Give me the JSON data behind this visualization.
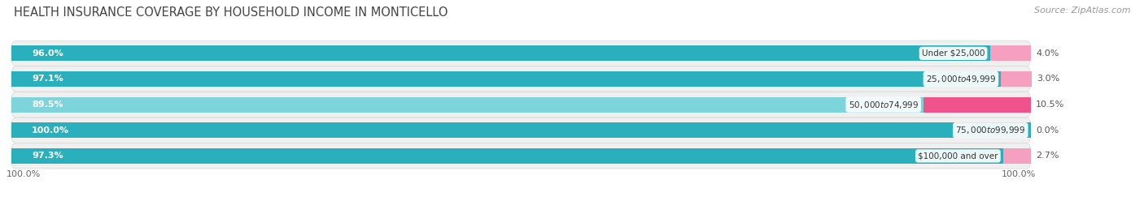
{
  "title": "HEALTH INSURANCE COVERAGE BY HOUSEHOLD INCOME IN MONTICELLO",
  "source": "Source: ZipAtlas.com",
  "categories": [
    "Under $25,000",
    "$25,000 to $49,999",
    "$50,000 to $74,999",
    "$75,000 to $99,999",
    "$100,000 and over"
  ],
  "with_coverage": [
    96.0,
    97.1,
    89.5,
    100.0,
    97.3
  ],
  "without_coverage": [
    4.0,
    3.0,
    10.5,
    0.0,
    2.7
  ],
  "color_coverage_dark": "#2ab0bc",
  "color_coverage_light": "#7dd4db",
  "color_no_coverage_dark": "#f0538a",
  "color_no_coverage_light": "#f4a0be",
  "row_bg": "#efefef",
  "title_fontsize": 10.5,
  "source_fontsize": 8,
  "label_fontsize": 8,
  "cat_fontsize": 7.5,
  "legend_fontsize": 9,
  "tick_fontsize": 8
}
